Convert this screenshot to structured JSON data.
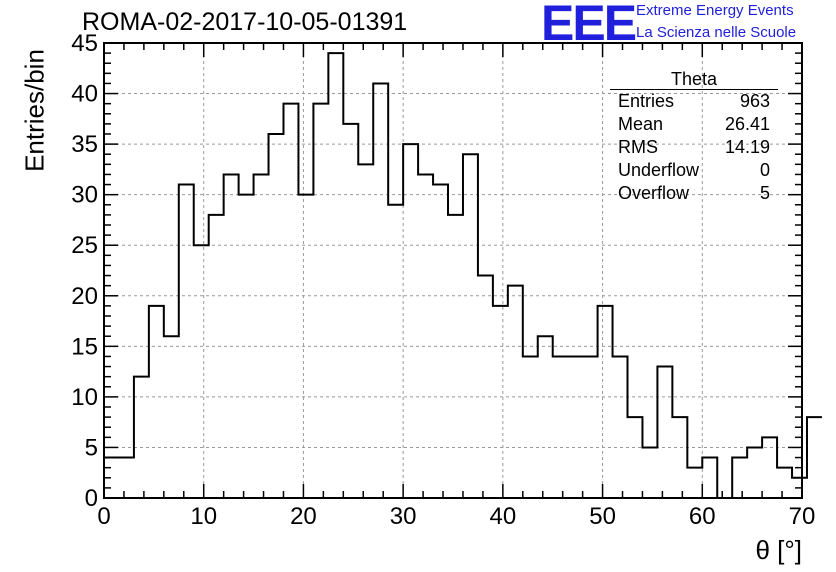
{
  "header": {
    "run_title": "ROMA-02-2017-10-05-01391",
    "logo_text": "EEE",
    "logo_line1": "Extreme Energy Events",
    "logo_line2": "La Scienza nelle Scuole",
    "logo_color": "#1f1fdc"
  },
  "stats": {
    "title": "Theta",
    "rows": [
      {
        "label": "Entries",
        "value": "963"
      },
      {
        "label": "Mean",
        "value": "26.41"
      },
      {
        "label": "RMS",
        "value": "14.19"
      },
      {
        "label": "Underflow",
        "value": "0"
      },
      {
        "label": "Overflow",
        "value": "5"
      }
    ]
  },
  "chart_data": {
    "type": "bar",
    "histogram": true,
    "title": "ROMA-02-2017-10-05-01391",
    "xlabel": "θ [°]",
    "ylabel": "Entries/bin",
    "xlim": [
      0,
      70
    ],
    "ylim": [
      0,
      45
    ],
    "xticks": [
      0,
      10,
      20,
      30,
      40,
      50,
      60,
      70
    ],
    "yticks": [
      0,
      5,
      10,
      15,
      20,
      25,
      30,
      35,
      40,
      45
    ],
    "grid": true,
    "bin_edges_start": 0,
    "bin_width": 1.5,
    "values": [
      4,
      4,
      12,
      19,
      16,
      31,
      25,
      28,
      32,
      30,
      32,
      36,
      39,
      30,
      39,
      44,
      37,
      33,
      41,
      29,
      35,
      32,
      31,
      28,
      34,
      22,
      19,
      21,
      14,
      16,
      14,
      14,
      14,
      19,
      14,
      8,
      5,
      13,
      8,
      3,
      4,
      0,
      4,
      5,
      6,
      3,
      2,
      8
    ],
    "line_color": "#000000",
    "grid_color": "#9a9a9a"
  }
}
